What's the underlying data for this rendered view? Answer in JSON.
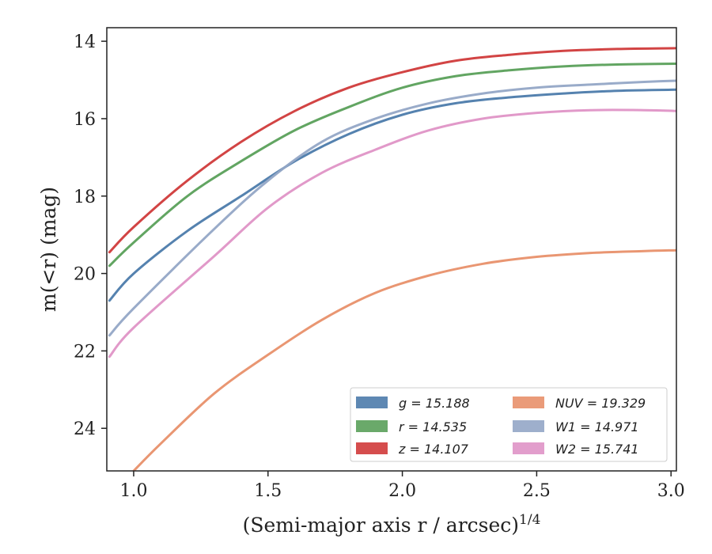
{
  "chart_data": {
    "type": "line",
    "title": "",
    "xlabel": "(Semi-major axis r / arcsec)",
    "xlabel_sup": "1/4",
    "ylabel": "m(<r) (mag)",
    "xlim": [
      0.9,
      3.02
    ],
    "ylim": [
      25.1,
      13.65
    ],
    "y_inverted": true,
    "xticks": [
      1.0,
      1.5,
      2.0,
      2.5,
      3.0
    ],
    "xtick_labels": [
      "1.0",
      "1.5",
      "2.0",
      "2.5",
      "3.0"
    ],
    "yticks": [
      14,
      16,
      18,
      20,
      22,
      24
    ],
    "ytick_labels": [
      "14",
      "16",
      "18",
      "20",
      "22",
      "24"
    ],
    "grid": false,
    "legend_position": "lower-right",
    "legend_columns": 2,
    "series": [
      {
        "name": "g = 15.188",
        "color": "#4c7bab",
        "x": [
          0.91,
          1.0,
          1.2,
          1.4,
          1.6,
          1.8,
          2.0,
          2.2,
          2.4,
          2.6,
          2.8,
          3.02
        ],
        "y": [
          20.7,
          20.0,
          18.9,
          18.0,
          17.1,
          16.4,
          15.9,
          15.6,
          15.45,
          15.35,
          15.28,
          15.25
        ]
      },
      {
        "name": "r = 14.535",
        "color": "#5aa05a",
        "x": [
          0.91,
          1.0,
          1.2,
          1.4,
          1.6,
          1.8,
          2.0,
          2.2,
          2.4,
          2.6,
          2.8,
          3.02
        ],
        "y": [
          19.8,
          19.2,
          18.0,
          17.1,
          16.3,
          15.7,
          15.2,
          14.9,
          14.75,
          14.65,
          14.6,
          14.58
        ]
      },
      {
        "name": "z = 14.107",
        "color": "#d03a3a",
        "x": [
          0.91,
          1.0,
          1.2,
          1.4,
          1.6,
          1.8,
          2.0,
          2.2,
          2.4,
          2.6,
          2.8,
          3.02
        ],
        "y": [
          19.45,
          18.8,
          17.6,
          16.6,
          15.8,
          15.2,
          14.8,
          14.5,
          14.35,
          14.25,
          14.2,
          14.18
        ]
      },
      {
        "name": "NUV = 19.329",
        "color": "#e8906a",
        "x": [
          1.0,
          1.1,
          1.3,
          1.5,
          1.7,
          1.9,
          2.1,
          2.3,
          2.5,
          2.7,
          2.9,
          3.02
        ],
        "y": [
          25.1,
          24.4,
          23.1,
          22.1,
          21.2,
          20.5,
          20.05,
          19.75,
          19.57,
          19.47,
          19.42,
          19.4
        ]
      },
      {
        "name": "W1 = 14.971",
        "color": "#94a6c6",
        "x": [
          0.91,
          1.0,
          1.3,
          1.5,
          1.7,
          1.9,
          2.1,
          2.3,
          2.5,
          2.7,
          2.9,
          3.02
        ],
        "y": [
          21.6,
          20.9,
          18.85,
          17.6,
          16.6,
          16.0,
          15.6,
          15.35,
          15.2,
          15.12,
          15.05,
          15.02
        ]
      },
      {
        "name": "W2 = 15.741",
        "color": "#df93c6",
        "x": [
          0.91,
          1.0,
          1.3,
          1.5,
          1.7,
          1.9,
          2.1,
          2.3,
          2.5,
          2.7,
          2.9,
          3.02
        ],
        "y": [
          22.15,
          21.4,
          19.55,
          18.3,
          17.4,
          16.8,
          16.3,
          16.0,
          15.85,
          15.78,
          15.78,
          15.8
        ]
      }
    ]
  }
}
